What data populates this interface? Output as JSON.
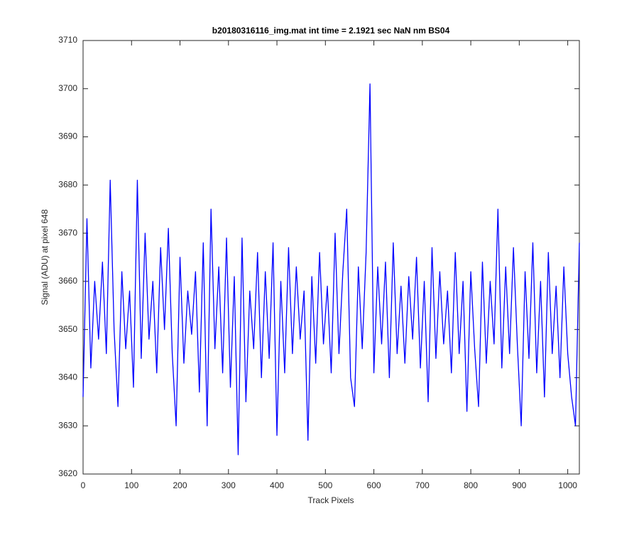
{
  "chart_data": {
    "type": "line",
    "title": "b20180316116_img.mat int time = 2.1921 sec  NaN nm BS04",
    "x_label": "Track Pixels",
    "y_label": "Signal (ADU) at pixel 648",
    "xlim": [
      0,
      1024
    ],
    "ylim": [
      3620,
      3710
    ],
    "xticks": [
      0,
      100,
      200,
      300,
      400,
      500,
      600,
      700,
      800,
      900,
      1000
    ],
    "yticks": [
      3620,
      3630,
      3640,
      3650,
      3660,
      3670,
      3680,
      3690,
      3700,
      3710
    ],
    "grid": false,
    "x": [
      0,
      8,
      16,
      24,
      32,
      40,
      48,
      56,
      64,
      72,
      80,
      88,
      96,
      104,
      112,
      120,
      128,
      136,
      144,
      152,
      160,
      168,
      176,
      184,
      192,
      200,
      208,
      216,
      224,
      232,
      240,
      248,
      256,
      264,
      272,
      280,
      288,
      296,
      304,
      312,
      320,
      328,
      336,
      344,
      352,
      360,
      368,
      376,
      384,
      392,
      400,
      408,
      416,
      424,
      432,
      440,
      448,
      456,
      464,
      472,
      480,
      488,
      496,
      504,
      512,
      520,
      528,
      536,
      544,
      552,
      560,
      568,
      576,
      584,
      592,
      600,
      608,
      616,
      624,
      632,
      640,
      648,
      656,
      664,
      672,
      680,
      688,
      696,
      704,
      712,
      720,
      728,
      736,
      744,
      752,
      760,
      768,
      776,
      784,
      792,
      800,
      808,
      816,
      824,
      832,
      840,
      848,
      856,
      864,
      872,
      880,
      888,
      896,
      904,
      912,
      920,
      928,
      936,
      944,
      952,
      960,
      968,
      976,
      984,
      992,
      1000,
      1008,
      1016,
      1024
    ],
    "series": [
      {
        "name": "signal",
        "color": "#0000ff",
        "values": [
          3636,
          3673,
          3642,
          3660,
          3648,
          3664,
          3645,
          3681,
          3650,
          3634,
          3662,
          3646,
          3658,
          3638,
          3681,
          3644,
          3670,
          3648,
          3660,
          3641,
          3667,
          3650,
          3671,
          3645,
          3630,
          3665,
          3643,
          3658,
          3649,
          3662,
          3637,
          3668,
          3630,
          3675,
          3646,
          3663,
          3641,
          3669,
          3638,
          3661,
          3624,
          3669,
          3635,
          3658,
          3646,
          3666,
          3640,
          3662,
          3644,
          3668,
          3628,
          3660,
          3641,
          3667,
          3645,
          3663,
          3648,
          3658,
          3627,
          3661,
          3643,
          3666,
          3647,
          3659,
          3641,
          3670,
          3645,
          3662,
          3675,
          3640,
          3634,
          3663,
          3646,
          3666,
          3701,
          3641,
          3663,
          3647,
          3664,
          3640,
          3668,
          3645,
          3659,
          3643,
          3661,
          3648,
          3665,
          3642,
          3660,
          3635,
          3667,
          3644,
          3662,
          3647,
          3658,
          3641,
          3666,
          3645,
          3660,
          3633,
          3662,
          3646,
          3634,
          3664,
          3643,
          3660,
          3647,
          3675,
          3642,
          3663,
          3645,
          3667,
          3647,
          3630,
          3662,
          3644,
          3668,
          3641,
          3660,
          3636,
          3666,
          3645,
          3659,
          3640,
          3663,
          3645,
          3636,
          3630,
          3668
        ]
      }
    ]
  }
}
